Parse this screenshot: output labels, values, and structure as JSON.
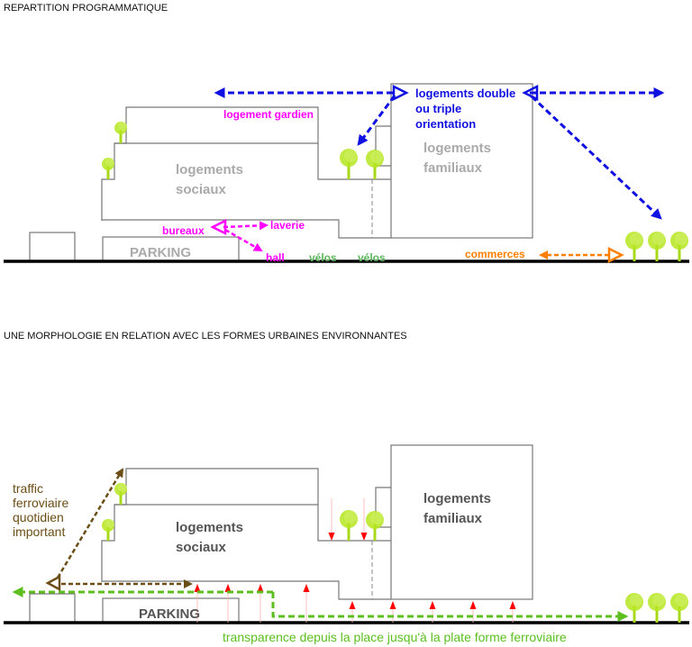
{
  "sections": [
    {
      "title": "REPARTITION PROGRAMMATIQUE",
      "labels": {
        "gardien": "logement gardien",
        "sociaux_1": "logements",
        "sociaux_2": "sociaux",
        "familiaux_1": "logements",
        "familiaux_2": "familiaux",
        "orientation_1": "logements double",
        "orientation_2": "ou triple",
        "orientation_3": "orientation",
        "bureaux": "bureaux",
        "laverie": "laverie",
        "hall": "hall",
        "velos_1": "vélos",
        "velos_2": "vélos",
        "commerces": "commerces",
        "parking": "PARKING"
      }
    },
    {
      "title": "UNE MORPHOLOGIE EN RELATION AVEC LES FORMES URBAINES ENVIRONNANTES",
      "labels": {
        "traffic_1": "traffic",
        "traffic_2": "ferroviaire",
        "traffic_3": "quotidien",
        "traffic_4": "important",
        "sociaux_1": "logements",
        "sociaux_2": "sociaux",
        "familiaux_1": "logements",
        "familiaux_2": "familiaux",
        "parking": "PARKING",
        "transparence": "transparence depuis la place jusqu'à la plate forme ferroviaire"
      }
    }
  ],
  "colors": {
    "program_magenta": "#ff00ff",
    "orientation_blue": "#1010e0",
    "velos_green": "#5cb85c",
    "commerces_orange": "#ff7f00",
    "traffic_brown": "#6b4e16",
    "transparence_green": "#5cbf1f",
    "light_arrows_red": "#ff0000",
    "tree_green": "#b5e61d"
  }
}
